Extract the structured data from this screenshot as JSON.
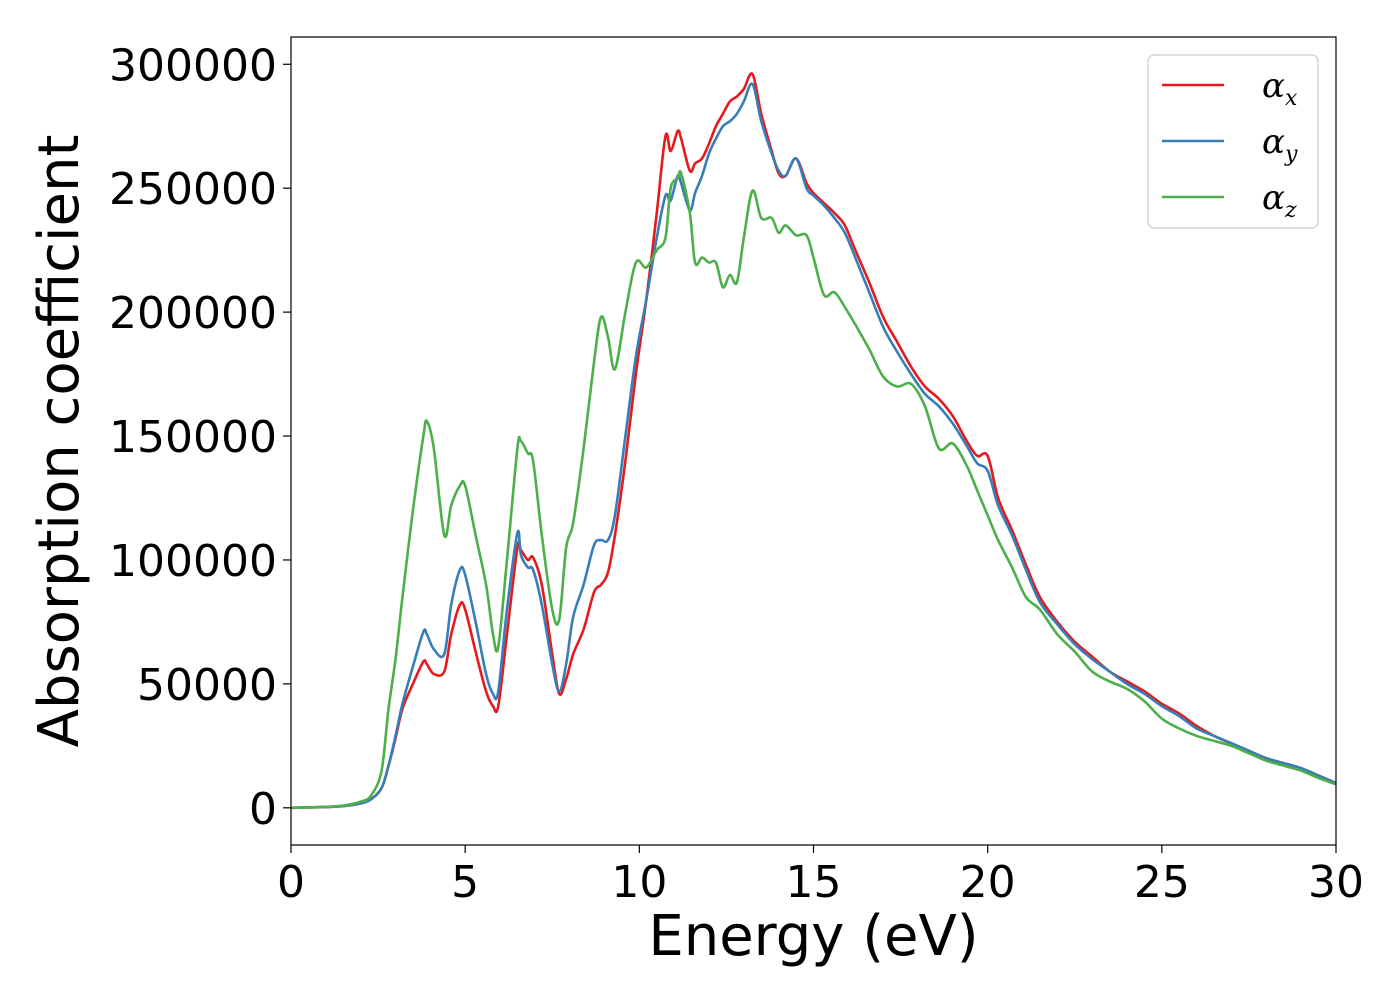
{
  "chart_data": {
    "type": "line",
    "title": "",
    "xlabel": "Energy (eV)",
    "ylabel": "Absorption coefficient",
    "xlim": [
      0,
      30
    ],
    "ylim": [
      -15000,
      311000
    ],
    "xticks": [
      0,
      5,
      10,
      15,
      20,
      25,
      30
    ],
    "yticks": [
      0,
      50000,
      100000,
      150000,
      200000,
      250000,
      300000
    ],
    "xtick_labels": [
      "0",
      "5",
      "10",
      "15",
      "20",
      "25",
      "30"
    ],
    "ytick_labels": [
      "0",
      "50000",
      "100000",
      "150000",
      "200000",
      "250000",
      "300000"
    ],
    "grid": false,
    "legend_position": "top-right",
    "series": [
      {
        "name": "α",
        "subscript": "x",
        "color": "#e41a1c",
        "x": [
          0,
          1,
          1.5,
          2,
          2.3,
          2.6,
          2.8,
          3.0,
          3.2,
          3.5,
          3.8,
          3.9,
          4.1,
          4.4,
          4.6,
          4.85,
          5.0,
          5.3,
          5.6,
          5.8,
          5.95,
          6.2,
          6.5,
          6.6,
          6.8,
          6.95,
          7.2,
          7.5,
          7.7,
          7.9,
          8.1,
          8.4,
          8.7,
          8.9,
          9.1,
          9.3,
          9.6,
          9.9,
          10.2,
          10.5,
          10.75,
          10.9,
          11.1,
          11.2,
          11.45,
          11.6,
          11.8,
          12.0,
          12.2,
          12.4,
          12.6,
          12.8,
          13.0,
          13.25,
          13.5,
          13.8,
          14.0,
          14.2,
          14.5,
          14.8,
          15.0,
          15.3,
          15.6,
          15.9,
          16.2,
          16.6,
          17.0,
          17.4,
          17.8,
          18.2,
          18.6,
          19.0,
          19.4,
          19.7,
          20.0,
          20.3,
          20.7,
          21.1,
          21.5,
          22.0,
          22.5,
          23.0,
          23.5,
          24.0,
          24.5,
          25.0,
          25.5,
          26.0,
          26.5,
          27.0,
          27.5,
          28.0,
          28.5,
          29.0,
          29.5,
          30.0
        ],
        "values": [
          0,
          300,
          700,
          1800,
          3500,
          8000,
          17000,
          28000,
          40000,
          50000,
          59000,
          58000,
          54000,
          55000,
          70000,
          82000,
          80000,
          63000,
          47000,
          41000,
          41000,
          70000,
          105000,
          104000,
          100000,
          101000,
          90000,
          62000,
          46000,
          52000,
          62000,
          72000,
          87000,
          90000,
          95000,
          110000,
          140000,
          175000,
          205000,
          240000,
          271000,
          265000,
          273000,
          270000,
          257000,
          260000,
          262000,
          268000,
          275000,
          280000,
          285000,
          287000,
          290000,
          296000,
          280000,
          265000,
          256000,
          255000,
          262000,
          252000,
          248000,
          244000,
          240000,
          235000,
          225000,
          212000,
          198000,
          188000,
          178000,
          170000,
          165000,
          158000,
          148000,
          142000,
          142000,
          125000,
          112000,
          98000,
          85000,
          75000,
          67000,
          61000,
          55000,
          51000,
          47000,
          42000,
          38000,
          33000,
          29000,
          26000,
          23000,
          20000,
          18000,
          16000,
          13000,
          10000
        ]
      },
      {
        "name": "α",
        "subscript": "y",
        "color": "#377eb8",
        "x": [
          0,
          1,
          1.5,
          2,
          2.3,
          2.6,
          2.8,
          3.0,
          3.2,
          3.5,
          3.8,
          3.9,
          4.1,
          4.4,
          4.6,
          4.85,
          5.0,
          5.3,
          5.6,
          5.8,
          5.95,
          6.2,
          6.5,
          6.6,
          6.8,
          6.95,
          7.2,
          7.5,
          7.7,
          7.9,
          8.1,
          8.4,
          8.7,
          8.9,
          9.1,
          9.3,
          9.6,
          9.9,
          10.2,
          10.5,
          10.75,
          10.9,
          11.1,
          11.2,
          11.45,
          11.6,
          11.8,
          12.0,
          12.2,
          12.4,
          12.6,
          12.8,
          13.0,
          13.25,
          13.5,
          13.8,
          14.0,
          14.2,
          14.5,
          14.8,
          15.0,
          15.3,
          15.6,
          15.9,
          16.2,
          16.6,
          17.0,
          17.4,
          17.8,
          18.2,
          18.6,
          19.0,
          19.4,
          19.7,
          20.0,
          20.3,
          20.7,
          21.1,
          21.5,
          22.0,
          22.5,
          23.0,
          23.5,
          24.0,
          24.5,
          25.0,
          25.5,
          26.0,
          26.5,
          27.0,
          27.5,
          28.0,
          28.5,
          29.0,
          29.5,
          30.0
        ],
        "values": [
          0,
          300,
          700,
          1800,
          3500,
          8000,
          17000,
          29000,
          42000,
          57000,
          71000,
          70000,
          64000,
          62000,
          82000,
          96000,
          94000,
          75000,
          54000,
          46000,
          47000,
          80000,
          111000,
          102000,
          97000,
          96000,
          82000,
          58000,
          47000,
          58000,
          77000,
          90000,
          106000,
          108000,
          108000,
          118000,
          150000,
          182000,
          205000,
          230000,
          247000,
          245000,
          255000,
          252000,
          241000,
          248000,
          255000,
          264000,
          270000,
          275000,
          277000,
          280000,
          285000,
          292000,
          277000,
          264000,
          257000,
          255000,
          262000,
          250000,
          247000,
          243000,
          238000,
          232000,
          222000,
          208000,
          194000,
          184000,
          175000,
          167000,
          162000,
          155000,
          146000,
          139000,
          136000,
          122000,
          110000,
          96000,
          83000,
          74000,
          66000,
          60000,
          55000,
          50000,
          46000,
          41000,
          37000,
          32000,
          29000,
          26000,
          23000,
          20000,
          18000,
          16000,
          13000,
          10000
        ]
      },
      {
        "name": "α",
        "subscript": "z",
        "color": "#4daf4a",
        "x": [
          0,
          1,
          1.5,
          2,
          2.3,
          2.6,
          2.8,
          3.0,
          3.2,
          3.5,
          3.8,
          3.9,
          4.1,
          4.4,
          4.6,
          4.85,
          5.0,
          5.3,
          5.6,
          5.8,
          5.95,
          6.2,
          6.5,
          6.6,
          6.8,
          6.95,
          7.2,
          7.5,
          7.7,
          7.9,
          8.1,
          8.4,
          8.7,
          8.9,
          9.1,
          9.3,
          9.6,
          9.9,
          10.2,
          10.5,
          10.75,
          10.9,
          11.1,
          11.2,
          11.45,
          11.6,
          11.8,
          12.0,
          12.2,
          12.4,
          12.6,
          12.8,
          13.0,
          13.25,
          13.5,
          13.8,
          14.0,
          14.2,
          14.5,
          14.8,
          15.0,
          15.3,
          15.6,
          15.9,
          16.2,
          16.6,
          17.0,
          17.4,
          17.8,
          18.2,
          18.6,
          19.0,
          19.4,
          19.7,
          20.0,
          20.3,
          20.7,
          21.1,
          21.5,
          22.0,
          22.5,
          23.0,
          23.5,
          24.0,
          24.5,
          25.0,
          25.5,
          26.0,
          26.5,
          27.0,
          27.5,
          28.0,
          28.5,
          29.0,
          29.5,
          30.0
        ],
        "values": [
          0,
          400,
          900,
          2500,
          5000,
          15000,
          40000,
          60000,
          85000,
          120000,
          150000,
          156000,
          145000,
          110000,
          122000,
          130000,
          130000,
          110000,
          90000,
          70000,
          65000,
          100000,
          145000,
          148000,
          143000,
          140000,
          110000,
          80000,
          76000,
          105000,
          115000,
          145000,
          180000,
          198000,
          190000,
          177000,
          200000,
          220000,
          218000,
          225000,
          230000,
          250000,
          254000,
          256000,
          240000,
          220000,
          222000,
          220000,
          220000,
          210000,
          215000,
          212000,
          230000,
          249000,
          238000,
          238000,
          232000,
          235000,
          231000,
          231000,
          222000,
          207000,
          208000,
          202000,
          195000,
          185000,
          174000,
          170000,
          171000,
          162000,
          145000,
          147000,
          138000,
          128000,
          118000,
          108000,
          97000,
          85000,
          80000,
          70000,
          63000,
          55000,
          51000,
          48000,
          43000,
          36000,
          32000,
          29000,
          27000,
          25000,
          22000,
          19000,
          17000,
          15000,
          12000,
          9500
        ]
      }
    ]
  }
}
